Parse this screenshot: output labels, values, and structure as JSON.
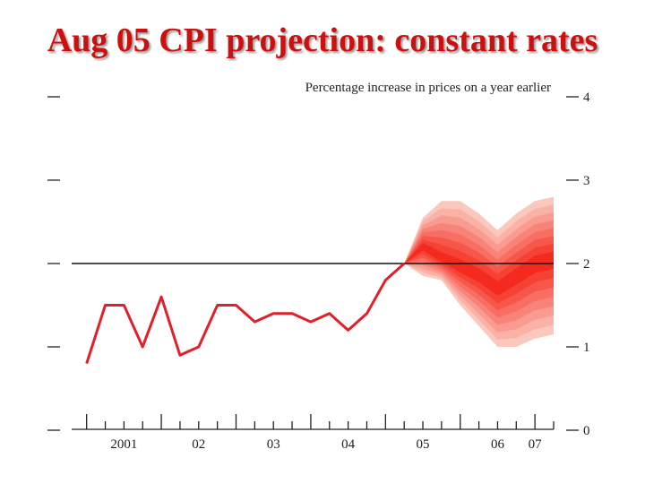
{
  "slide": {
    "title": "Aug 05 CPI projection: constant rates"
  },
  "chart_data": {
    "type": "area",
    "title": "Aug 05 CPI projection: constant rates",
    "subtitle": "Percentage increase in prices on a year earlier",
    "xlabel": "",
    "ylabel": "",
    "ylim": [
      0,
      4
    ],
    "yticks": [
      0,
      1,
      2,
      3,
      4
    ],
    "xlim": [
      2000.8,
      2007.25
    ],
    "xtick_labels": [
      {
        "label": "2001",
        "x": 2001.5
      },
      {
        "label": "02",
        "x": 2002.5
      },
      {
        "label": "03",
        "x": 2003.5
      },
      {
        "label": "04",
        "x": 2004.5
      },
      {
        "label": "05",
        "x": 2005.5
      },
      {
        "label": "06",
        "x": 2006.5
      },
      {
        "label": "07",
        "x": 2007.0
      }
    ],
    "target_line": 2.0,
    "grid": false,
    "legend": "none",
    "colors": {
      "history_line": "#e0202a",
      "target_line": "#111111",
      "fan_light": "#fbc8bd",
      "fan_dark": "#f52a1e"
    },
    "series": [
      {
        "kind": "history",
        "x": [
          2001.0,
          2001.25,
          2001.5,
          2001.75,
          2002.0,
          2002.25,
          2002.5,
          2002.75,
          2003.0,
          2003.25,
          2003.5,
          2003.75,
          2004.0,
          2004.25,
          2004.5,
          2004.75,
          2005.0
        ],
        "values": [
          0.8,
          1.5,
          1.5,
          1.0,
          1.6,
          0.9,
          1.0,
          1.5,
          1.5,
          1.3,
          1.4,
          1.4,
          1.3,
          1.4,
          1.2,
          1.4,
          1.8
        ]
      },
      {
        "kind": "fan",
        "x": [
          2005.25,
          2005.5,
          2005.75,
          2006.0,
          2006.25,
          2006.5,
          2006.75,
          2007.0,
          2007.25
        ],
        "central": [
          2.0,
          2.2,
          2.05,
          1.95,
          1.85,
          1.7,
          1.85,
          2.0,
          2.05
        ],
        "outer_upper": [
          2.0,
          2.55,
          2.75,
          2.75,
          2.6,
          2.4,
          2.6,
          2.75,
          2.8
        ],
        "outer_lower": [
          2.0,
          1.85,
          1.8,
          1.5,
          1.25,
          1.0,
          1.0,
          1.1,
          1.15
        ]
      }
    ]
  }
}
